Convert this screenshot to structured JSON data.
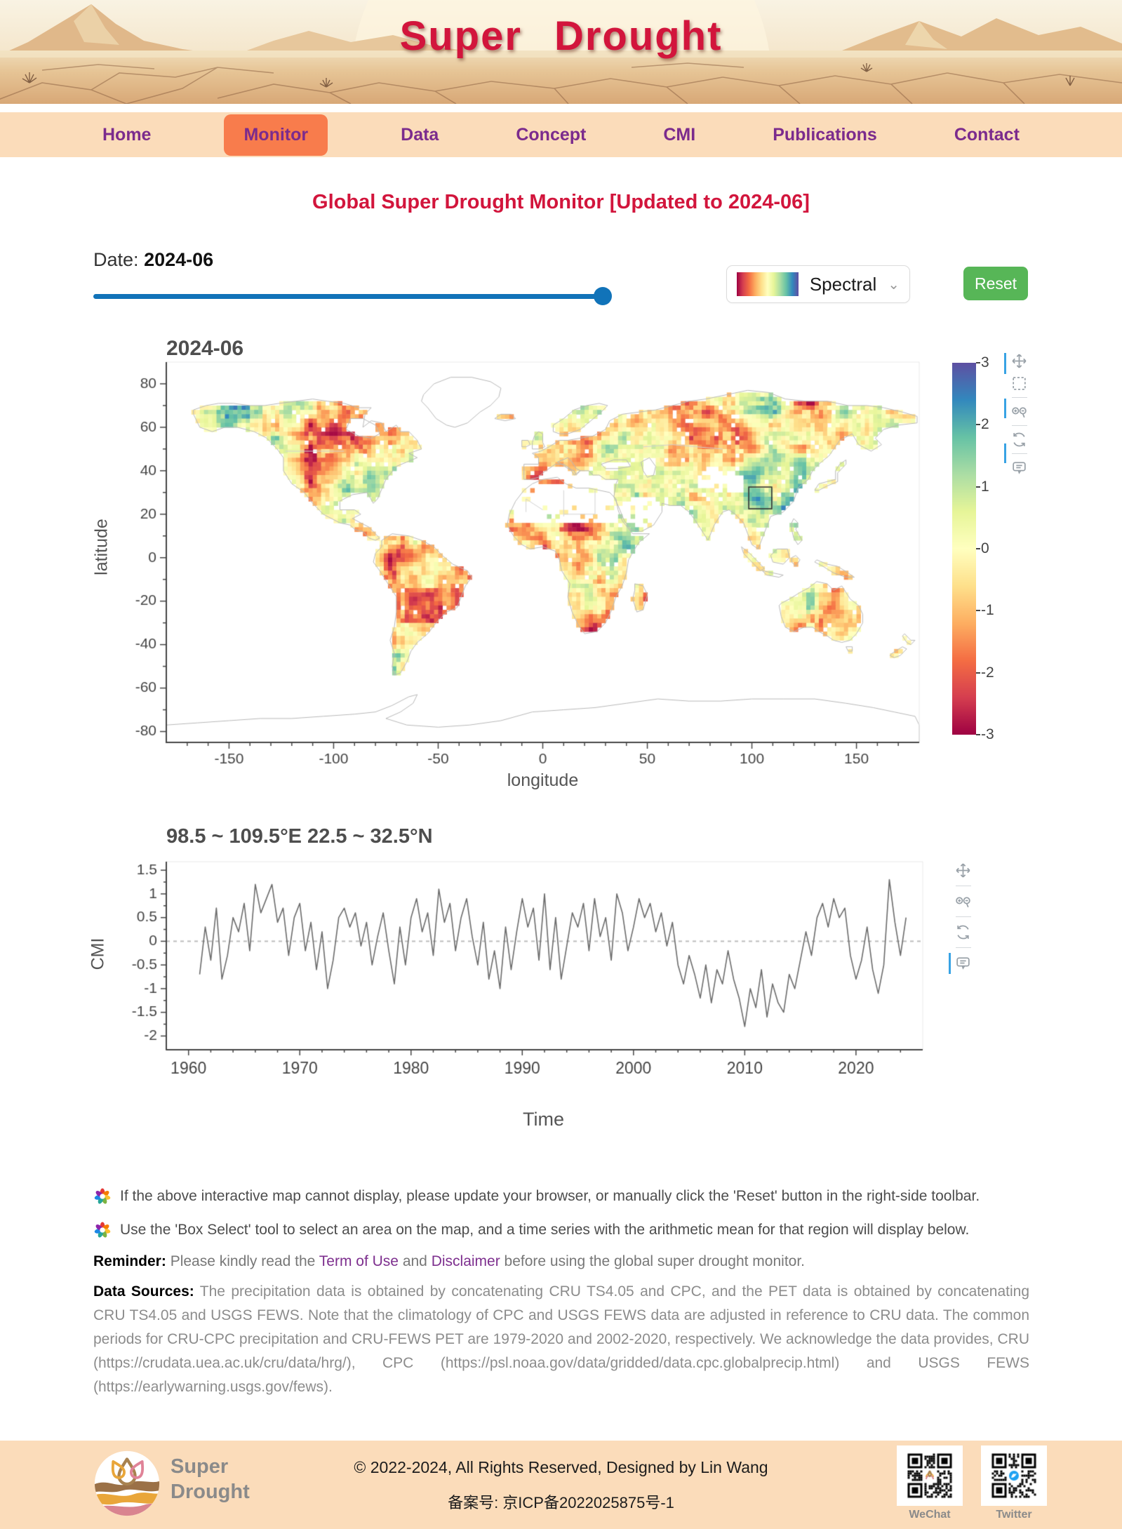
{
  "header": {
    "title_word1": "Super",
    "title_word2": "Drought"
  },
  "nav": {
    "items": [
      {
        "label": "Home",
        "active": false
      },
      {
        "label": "Monitor",
        "active": true
      },
      {
        "label": "Data",
        "active": false
      },
      {
        "label": "Concept",
        "active": false
      },
      {
        "label": "CMI",
        "active": false
      },
      {
        "label": "Publications",
        "active": false
      },
      {
        "label": "Contact",
        "active": false
      }
    ]
  },
  "page": {
    "title": "Global Super Drought Monitor [Updated to 2024-06]"
  },
  "controls": {
    "date_label": "Date:",
    "date_value": "2024-06",
    "colormap_label": "Spectral",
    "reset_label": "Reset"
  },
  "chart_data": [
    {
      "type": "heatmap",
      "title": "2024-06",
      "xlabel": "longitude",
      "ylabel": "latitude",
      "xlim": [
        -180,
        180
      ],
      "ylim": [
        -85,
        90
      ],
      "xticks": [
        -150,
        -100,
        -50,
        0,
        50,
        100,
        150
      ],
      "yticks": [
        80,
        60,
        40,
        20,
        0,
        -20,
        -40,
        -60,
        -80
      ],
      "grid": false,
      "colormap": "Spectral",
      "colorbar": {
        "range": [
          -3,
          3
        ],
        "ticks": [
          3,
          2,
          1,
          0,
          -1,
          -2,
          -3
        ]
      },
      "selected_box": {
        "lon": [
          98.5,
          109.5
        ],
        "lat": [
          22.5,
          32.5
        ]
      },
      "cell_size_deg": 2,
      "no_data_regions": [
        "Greenland",
        "Sahara",
        "Arabian Peninsula",
        "Tibetan Plateau",
        "Antarctica"
      ],
      "description": "Global CMI drought heatmap for 2024-06; dry (red, negative CMI) over N Canada, Sahel, S Amazon, Australia; wet (green/teal, positive CMI) over Alaska, Scandinavia, E China"
    },
    {
      "type": "line",
      "title": "98.5 ~ 109.5°E  22.5 ~ 32.5°N",
      "xlabel": "Time",
      "ylabel": "CMI",
      "xlim": [
        1958,
        2026
      ],
      "ylim": [
        -2.29,
        1.68
      ],
      "xticks": [
        1960,
        1970,
        1980,
        1990,
        2000,
        2010,
        2020
      ],
      "yticks": [
        1.5,
        1,
        0.5,
        0,
        -0.5,
        -1,
        -1.5,
        -2
      ],
      "zero_line": true,
      "line_color": "#6b6b6b",
      "x_start": 1961.0,
      "x_step": 0.5,
      "values": [
        -0.7,
        0.3,
        -0.4,
        0.7,
        -0.8,
        -0.3,
        0.5,
        0.2,
        0.8,
        -0.2,
        1.2,
        0.6,
        0.9,
        1.2,
        0.4,
        0.7,
        -0.3,
        0.5,
        0.8,
        -0.2,
        0.4,
        -0.6,
        0.2,
        -1.0,
        -0.4,
        0.5,
        0.7,
        0.3,
        0.6,
        -0.1,
        0.4,
        -0.5,
        0.1,
        0.6,
        -0.2,
        -0.9,
        0.3,
        -0.5,
        0.5,
        0.9,
        0.2,
        0.6,
        -0.3,
        1.1,
        0.4,
        0.8,
        -0.2,
        0.5,
        0.9,
        0.1,
        -0.5,
        0.4,
        -0.8,
        -0.2,
        -1.0,
        0.3,
        -0.6,
        0.2,
        0.9,
        0.3,
        0.7,
        -0.4,
        1.0,
        -0.6,
        0.5,
        -0.8,
        -0.1,
        0.6,
        0.3,
        0.8,
        -0.2,
        0.9,
        0.1,
        0.5,
        -0.4,
        1.0,
        0.6,
        -0.2,
        0.3,
        0.9,
        0.5,
        0.8,
        0.2,
        0.6,
        -0.1,
        0.4,
        -0.5,
        -0.9,
        -0.3,
        -0.7,
        -1.2,
        -0.5,
        -1.3,
        -0.6,
        -0.9,
        -0.2,
        -0.8,
        -1.2,
        -1.8,
        -1.0,
        -1.4,
        -0.6,
        -1.6,
        -0.9,
        -1.3,
        -1.5,
        -0.7,
        -1.0,
        -0.4,
        0.2,
        -0.3,
        0.5,
        0.8,
        0.3,
        0.9,
        0.5,
        0.7,
        -0.3,
        -0.8,
        -0.4,
        0.3,
        -0.6,
        -1.1,
        -0.5,
        1.3,
        0.4,
        -0.3,
        0.5
      ]
    }
  ],
  "toolbar": {
    "icons": [
      "pan-icon",
      "box-select-icon",
      "zoom-in-icon",
      "zoom-out-icon",
      "reset-axes-icon",
      "hover-icon"
    ]
  },
  "notes": [
    "If the above interactive map cannot display, please update your browser, or manually click the 'Reset' button in the right-side toolbar.",
    "Use the 'Box Select' tool to select an area on the map, and a time series with the arithmetic mean for that region will display below."
  ],
  "reminder": {
    "label": "Reminder:",
    "text1": " Please kindly read the ",
    "link1": "Term of Use",
    "text2": " and ",
    "link2": "Disclaimer",
    "text3": " before using the global super drought monitor."
  },
  "data_sources": {
    "label": "Data Sources:",
    "body": " The precipitation data is obtained by concatenating CRU TS4.05 and CPC, and the PET data is obtained by concatenating CRU TS4.05 and USGS FEWS. Note that the climatology of CPC and USGS FEWS data are adjusted in reference to CRU data. The common periods for CRU-CPC precipitation and CRU-FEWS PET are 1979-2020 and 2002-2020, respectively. We acknowledge the data provides, CRU (https://crudata.uea.ac.uk/cru/data/hrg/), CPC (https://psl.noaa.gov/data/gridded/data.cpc.globalprecip.html) and USGS FEWS (https://earlywarning.usgs.gov/fews)."
  },
  "footer": {
    "logo_line1": "Super",
    "logo_line2": "Drought",
    "copyright": "© 2022-2024, All Rights Reserved, Designed by Lin Wang",
    "icp": "备案号: 京ICP备2022025875号-1",
    "qr1_label": "WeChat",
    "qr2_label": "Twitter"
  },
  "colors": {
    "accent_red": "#d2153c",
    "nav_bg": "#fbdcba",
    "nav_text": "#7b2b8d",
    "active_tab_bg": "#f87c4c",
    "slider_blue": "#1173b9",
    "reset_green": "#57b657",
    "link_purple": "#7d2f8e",
    "modebar_active_blue": "#38a3e4"
  }
}
